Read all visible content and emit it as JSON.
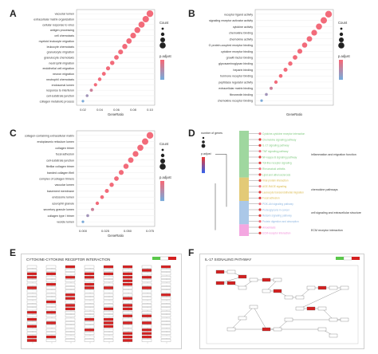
{
  "figure": {
    "panel_letters": [
      "A",
      "B",
      "C",
      "D",
      "E",
      "F"
    ]
  },
  "colors": {
    "dot_high": "#f26b7a",
    "dot_low": "#7aa9d8",
    "tree_green": "#7fc97f",
    "tree_yellow": "#d9b84a",
    "tree_blue": "#8fb6e0",
    "tree_pink": "#f08ad7",
    "kegg_red": "#d42020",
    "kegg_green": "#5ac84a"
  },
  "panel_a": {
    "xlabel": "GeneRatio",
    "ticks": [
      "0.02",
      "0.04",
      "0.06",
      "0.08",
      "0.10"
    ],
    "legend_count_title": "Count",
    "legend_padj_title": "p.adjust",
    "terms": [
      "vacuolar lumen",
      "extracellular matrix organization",
      "cellular response to virus",
      "antigen processing",
      "cell chemotaxis",
      "myeloid leukocyte migration",
      "leukocyte chemotaxis",
      "granulocyte migration",
      "granulocyte chemotaxis",
      "neutrophil migration",
      "endothelial cell migration",
      "neuron migration",
      "neutrophil chemotaxis",
      "endosomal lumen",
      "response to interferon",
      "cell-substrate junction",
      "collagen metabolic process"
    ]
  },
  "panel_b": {
    "xlabel": "GeneRatio",
    "legend_count_title": "Count",
    "legend_padj_title": "p.adjust",
    "terms": [
      "receptor ligand activity",
      "signaling receptor activator activity",
      "cytokine activity",
      "chemokine binding",
      "chemokine activity",
      "G protein-coupled receptor binding",
      "cytokine receptor binding",
      "growth factor binding",
      "glycosaminoglycan binding",
      "heparin binding",
      "hormone receptor binding",
      "peptidase regulator activity",
      "extracellular matrix binding",
      "fibronectin binding",
      "chemokine receptor binding"
    ]
  },
  "panel_c": {
    "xlabel": "GeneRatio",
    "ticks": [
      "0.000",
      "0.025",
      "0.050",
      "0.075"
    ],
    "legend_count_title": "Count",
    "legend_padj_title": "p.adjust",
    "terms": [
      "collagen-containing extracellular matrix",
      "endoplasmic reticulum lumen",
      "collagen trimer",
      "focal adhesion",
      "cell-substrate junction",
      "fibrillar collagen trimer",
      "banded collagen fibril",
      "complex of collagen trimers",
      "vacuolar lumen",
      "basement membrane",
      "endosome lumen",
      "azurophil granule",
      "secretory granule lumen",
      "collagen type I trimer",
      "vesicle lumen"
    ]
  },
  "panel_d": {
    "legend_count_title": "number of genes",
    "legend_padj_title": "p.adjust",
    "clusters": [
      "inflammation and migration function",
      "chemokine pathways",
      "cell signaling and extracellular structure",
      "ECM receptor interaction"
    ],
    "leaves": [
      "Cytokine-cytokine receptor interaction",
      "Chemokine signaling pathway",
      "IL-17 signaling pathway",
      "TNF signaling pathway",
      "NF-kappa B signaling pathway",
      "Toll-like receptor signaling",
      "Rheumatoid arthritis",
      "Lipid and atherosclerosis",
      "Viral protein interaction",
      "AGE-RAGE signaling",
      "Leukocyte transendothelial migration",
      "Focal adhesion",
      "PI3K-Akt signaling pathway",
      "Proteoglycans in cancer",
      "Relaxin signaling pathway",
      "Protein digestion and absorption",
      "Amoebiasis",
      "ECM-receptor interaction"
    ]
  },
  "panel_e": {
    "title": "CYTOKINE-CYTOKINE RECEPTOR INTERACTION"
  },
  "panel_f": {
    "title": "IL-17 SIGNALING PATHWAY"
  }
}
